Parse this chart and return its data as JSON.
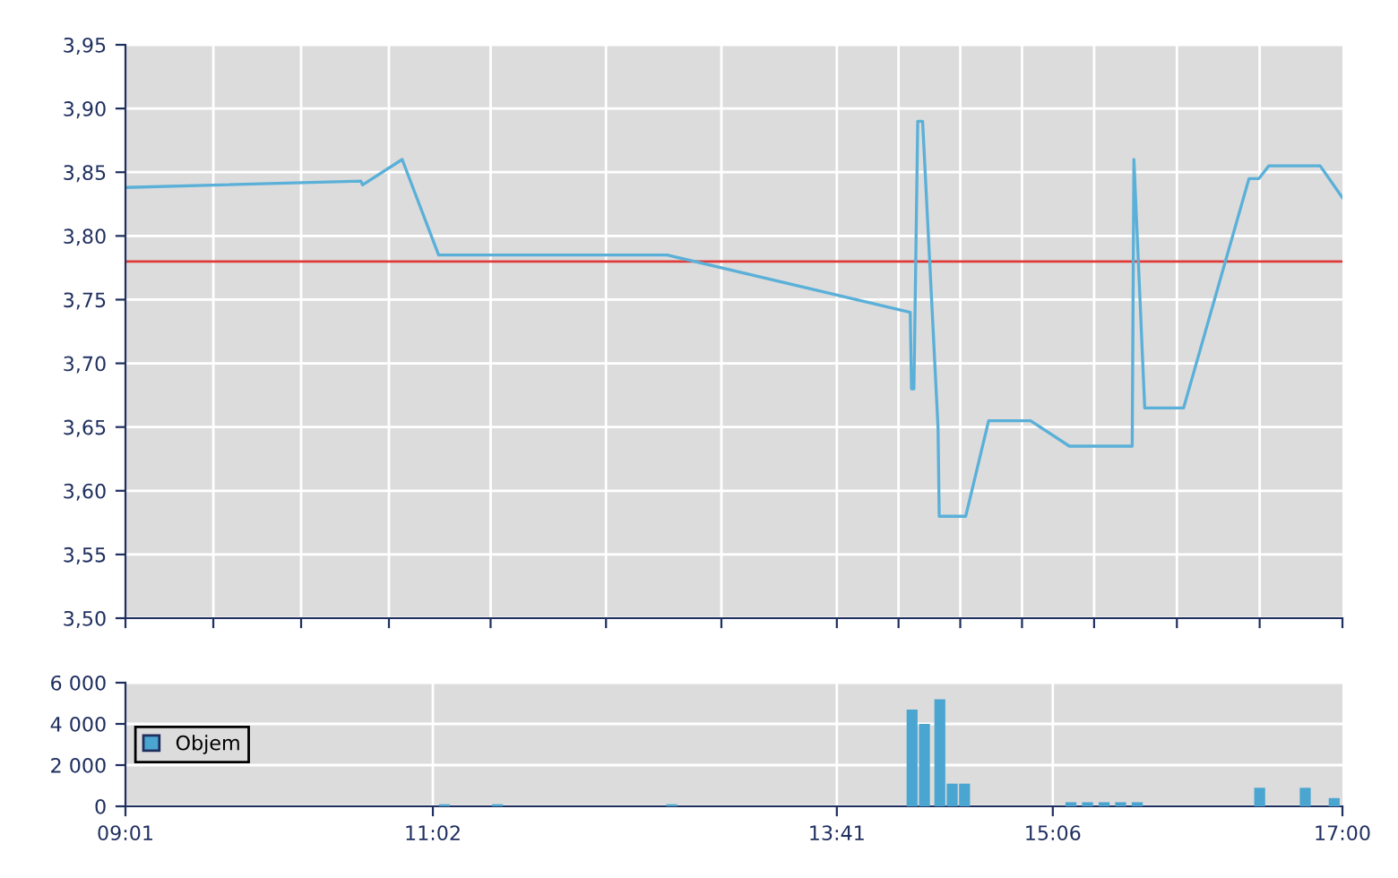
{
  "chart_data": [
    {
      "type": "line",
      "xlim": [
        9.0167,
        17
      ],
      "xticks": [
        {
          "value": 9.0167,
          "label": null
        },
        {
          "value": 9.593,
          "label": null
        },
        {
          "value": 10.169,
          "label": null
        },
        {
          "value": 10.745,
          "label": null
        },
        {
          "value": 11.412,
          "label": null
        },
        {
          "value": 12.169,
          "label": null
        },
        {
          "value": 12.926,
          "label": null
        },
        {
          "value": 13.6833,
          "label": null
        },
        {
          "value": 14.088,
          "label": null
        },
        {
          "value": 14.493,
          "label": null
        },
        {
          "value": 14.898,
          "label": null
        },
        {
          "value": 15.371,
          "label": null
        },
        {
          "value": 15.914,
          "label": null
        },
        {
          "value": 16.457,
          "label": null
        },
        {
          "value": 17,
          "label": null
        }
      ],
      "ylim": [
        3.5,
        3.95
      ],
      "yticks": [
        {
          "value": 3.5,
          "label": "3,50"
        },
        {
          "value": 3.55,
          "label": "3,55"
        },
        {
          "value": 3.6,
          "label": "3,60"
        },
        {
          "value": 3.65,
          "label": "3,65"
        },
        {
          "value": 3.7,
          "label": "3,70"
        },
        {
          "value": 3.75,
          "label": "3,75"
        },
        {
          "value": 3.8,
          "label": "3,80"
        },
        {
          "value": 3.85,
          "label": "3,85"
        },
        {
          "value": 3.9,
          "label": "3,90"
        },
        {
          "value": 3.95,
          "label": "3,95"
        }
      ],
      "tick_labels": "y",
      "grid": true,
      "legend": false,
      "ref_lines": [
        {
          "axis": "y",
          "value": 3.78,
          "color": "#e03a3a"
        }
      ],
      "series": [
        {
          "color": "#5ab0d8",
          "x": [
            9.017,
            10.561,
            10.572,
            10.832,
            11.071,
            12.57,
            14.165,
            14.173,
            14.189,
            14.214,
            14.246,
            14.347,
            14.355,
            14.529,
            14.679,
            14.954,
            15.209,
            15.621,
            15.632,
            15.703,
            15.958,
            16.387,
            16.452,
            16.517,
            16.854,
            17
          ],
          "values": [
            3.838,
            3.843,
            3.84,
            3.86,
            3.785,
            3.785,
            3.74,
            3.68,
            3.68,
            3.89,
            3.89,
            3.65,
            3.58,
            3.58,
            3.655,
            3.655,
            3.635,
            3.635,
            3.86,
            3.665,
            3.665,
            3.845,
            3.845,
            3.855,
            3.855,
            3.83
          ]
        }
      ]
    },
    {
      "type": "bar",
      "xlim": [
        9.0167,
        17
      ],
      "xticks": [
        {
          "value": 9.0167,
          "label": "09:01"
        },
        {
          "value": 11.0333,
          "label": "11:02"
        },
        {
          "value": 13.6833,
          "label": "13:41"
        },
        {
          "value": 15.1,
          "label": "15:06"
        },
        {
          "value": 17,
          "label": "17:00"
        }
      ],
      "ylim": [
        0,
        6000
      ],
      "yticks": [
        {
          "value": 0,
          "label": "0"
        },
        {
          "value": 2000,
          "label": "2 000"
        },
        {
          "value": 4000,
          "label": "4 000"
        },
        {
          "value": 6000,
          "label": "6 000"
        }
      ],
      "grid": true,
      "legend": "left",
      "series": [
        {
          "name": "Objem",
          "color": "#4aa6d0",
          "x": [
            11.109,
            11.457,
            12.6,
            14.177,
            14.258,
            14.359,
            14.44,
            14.521,
            15.219,
            15.328,
            15.437,
            15.545,
            15.654,
            16.457,
            16.756,
            16.946
          ],
          "values": [
            100,
            100,
            100,
            4700,
            4000,
            5200,
            1100,
            1100,
            200,
            200,
            200,
            200,
            200,
            900,
            900,
            400
          ]
        }
      ]
    }
  ]
}
